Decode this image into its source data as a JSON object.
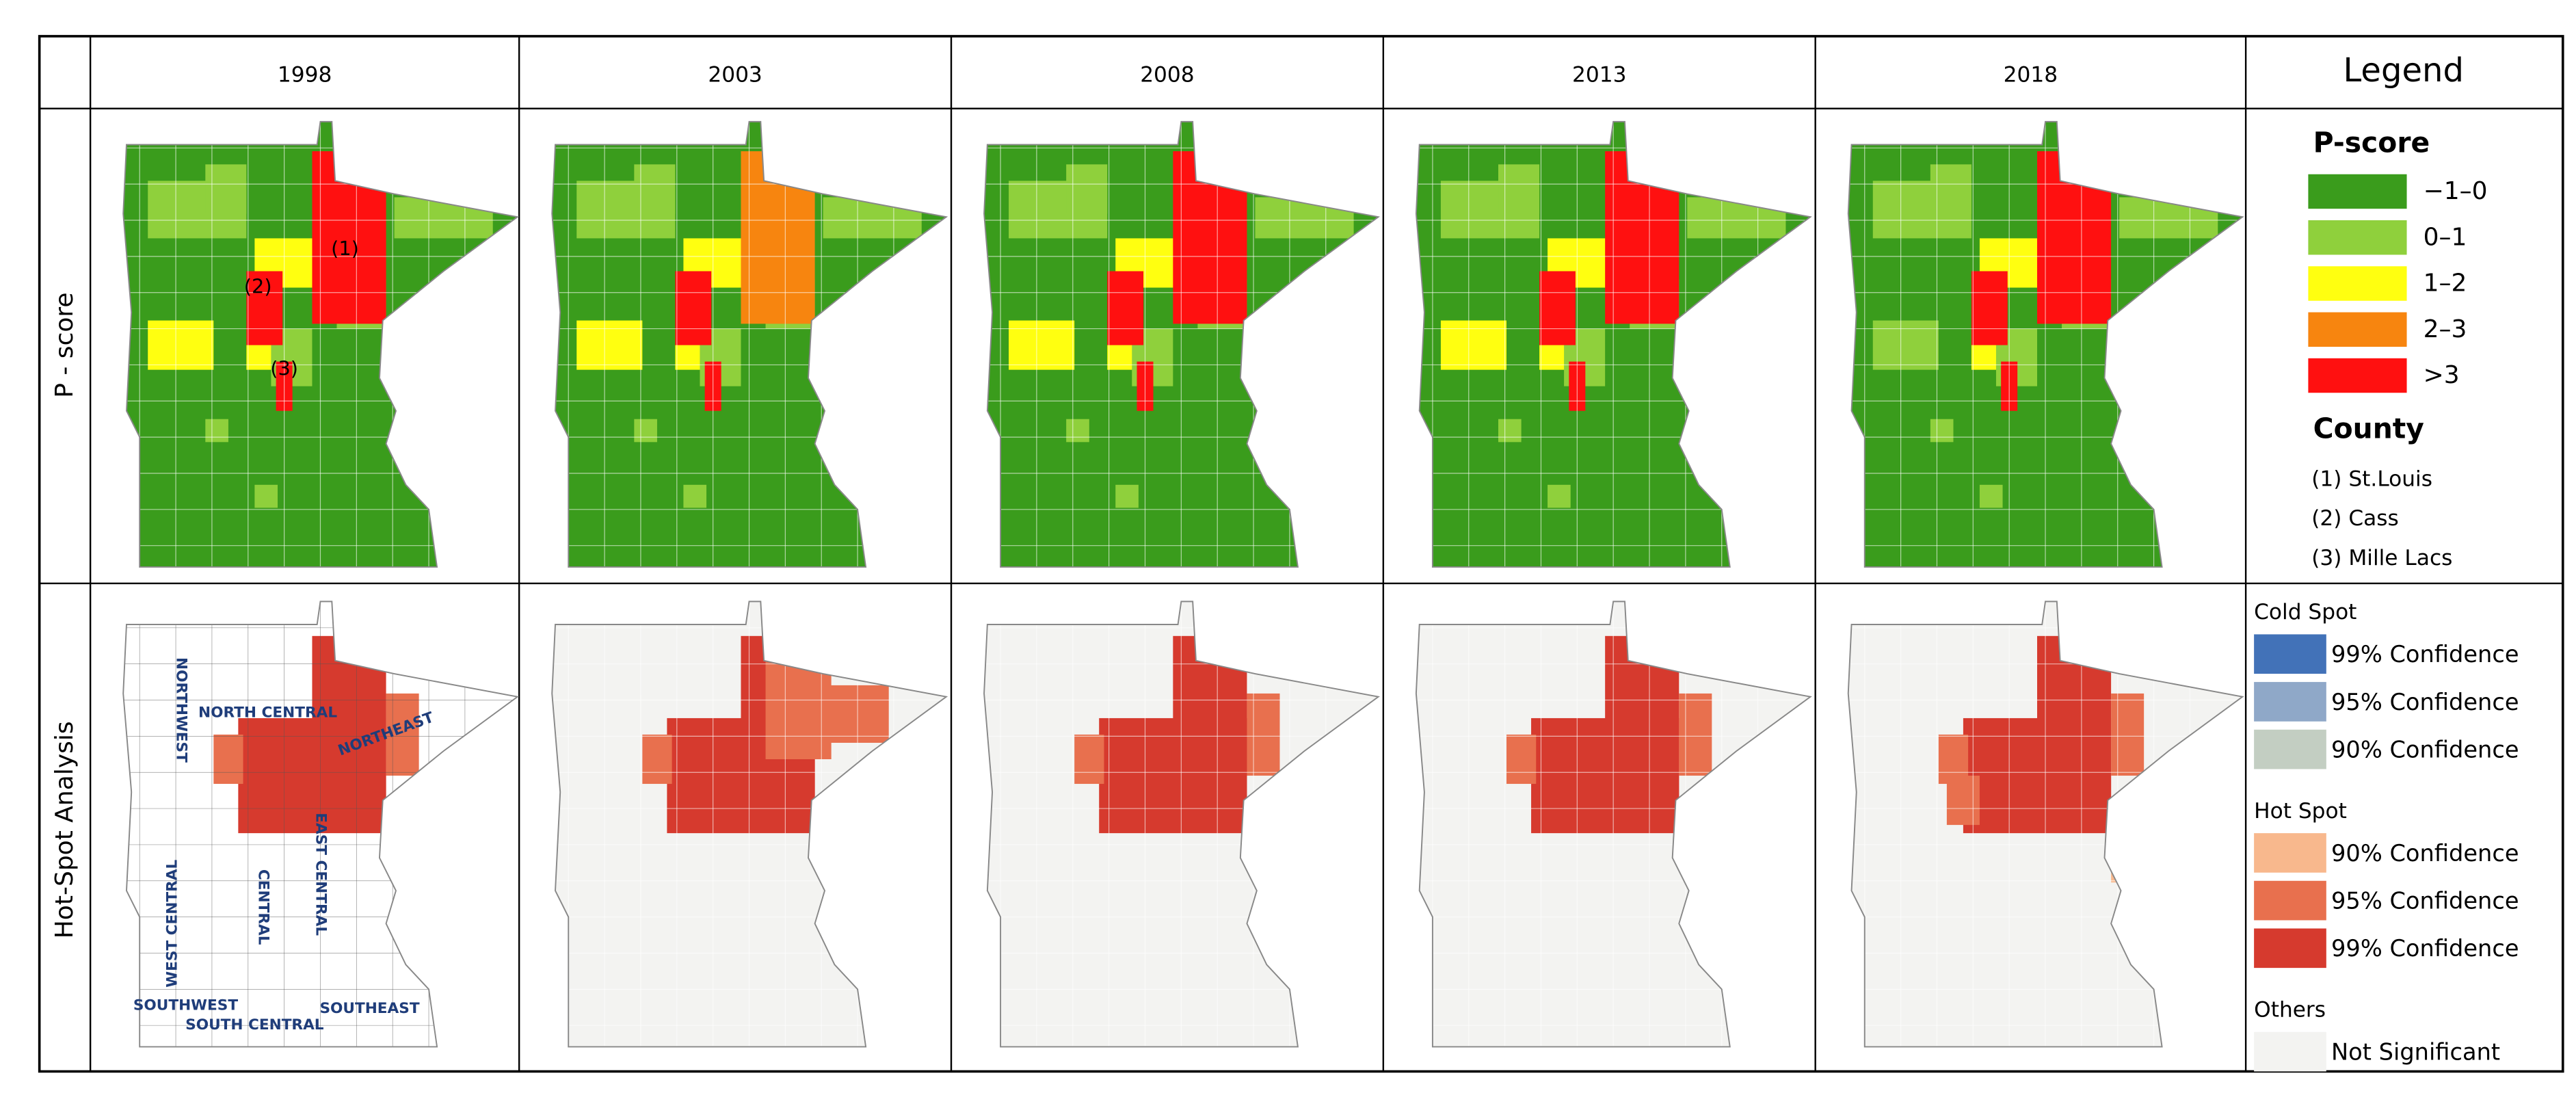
{
  "columns": [
    "1998",
    "2003",
    "2008",
    "2013",
    "2018"
  ],
  "legend_header": "Legend",
  "rows": [
    "P - score",
    "Hot-Spot Analysis"
  ],
  "pscore_legend": {
    "title": "P-score",
    "items": [
      {
        "label": "−1–0",
        "color": "#3a9c1c"
      },
      {
        "label": "0–1",
        "color": "#8fd03c"
      },
      {
        "label": "1–2",
        "color": "#ffff10"
      },
      {
        "label": "2–3",
        "color": "#f7850f"
      },
      {
        "label": ">3",
        "color": "#ff1010"
      }
    ]
  },
  "county_legend": {
    "title": "County",
    "items": [
      "(1) St.Louis",
      "(2) Cass",
      "(3) Mille Lacs"
    ]
  },
  "map_labels": {
    "counties": [
      "(1)",
      "(2)",
      "(3)"
    ],
    "regions": [
      "NORTHWEST",
      "NORTH CENTRAL",
      "NORTHEAST",
      "WEST CENTRAL",
      "CENTRAL",
      "EAST CENTRAL",
      "SOUTHWEST",
      "SOUTH CENTRAL",
      "SOUTHEAST"
    ]
  },
  "hotspot_legend": {
    "groups": [
      {
        "title": "Cold Spot",
        "items": [
          {
            "label": "99% Confidence",
            "color": "#4272b8"
          },
          {
            "label": "95% Confidence",
            "color": "#8fa8c8"
          },
          {
            "label": "90% Confidence",
            "color": "#c3cec2"
          }
        ]
      },
      {
        "title": "Hot Spot",
        "items": [
          {
            "label": "90% Confidence",
            "color": "#f8b88d"
          },
          {
            "label": "95% Confidence",
            "color": "#e8704e"
          },
          {
            "label": "99% Confidence",
            "color": "#d63a2e"
          }
        ]
      },
      {
        "title": "Others",
        "items": [
          {
            "label": "Not Significant",
            "color": "#f3f3f1"
          }
        ]
      }
    ]
  }
}
